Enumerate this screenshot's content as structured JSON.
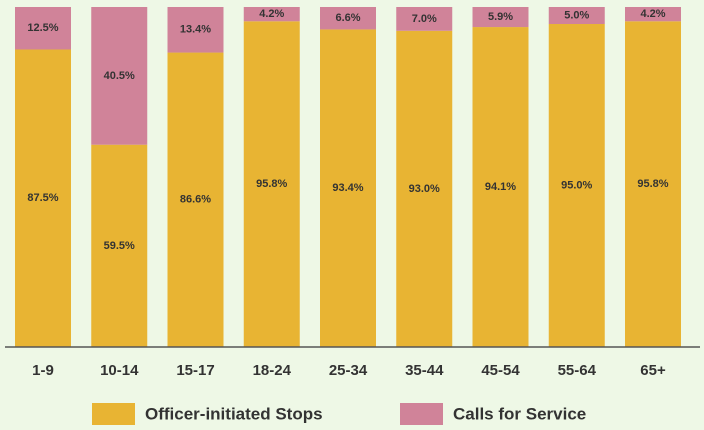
{
  "chart_data": {
    "type": "stacked_bar",
    "categories": [
      "1-9",
      "10-14",
      "15-17",
      "18-24",
      "25-34",
      "35-44",
      "45-54",
      "55-64",
      "65+"
    ],
    "series": [
      {
        "name": "Officer-initiated Stops",
        "color": "#e8b433",
        "values": [
          87.5,
          59.5,
          86.6,
          95.8,
          93.4,
          93.0,
          94.1,
          95.0,
          95.8
        ],
        "value_labels": [
          "87.5%",
          "59.5%",
          "86.6%",
          "95.8%",
          "93.4%",
          "93.0%",
          "94.1%",
          "95.0%",
          "95.8%"
        ]
      },
      {
        "name": "Calls for Service",
        "color": "#d08399",
        "values": [
          12.5,
          40.5,
          13.4,
          4.2,
          6.6,
          7.0,
          5.9,
          5.0,
          4.2
        ],
        "value_labels": [
          "12.5%",
          "40.5%",
          "13.4%",
          "4.2%",
          "6.6%",
          "7.0%",
          "5.9%",
          "5.0%",
          "4.2%"
        ]
      }
    ]
  }
}
